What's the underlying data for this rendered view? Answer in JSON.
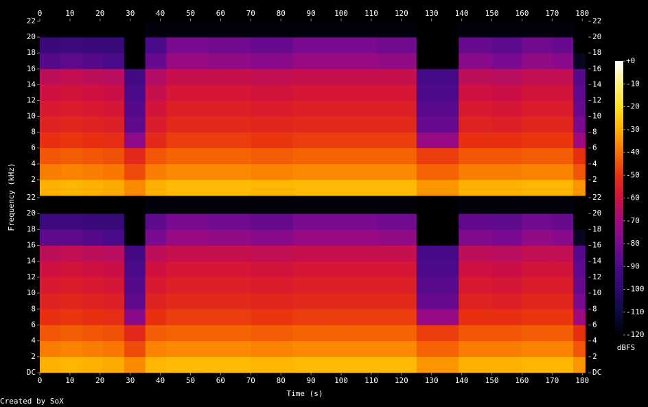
{
  "chart_data": {
    "type": "spectrogram",
    "xlabel": "Time (s)",
    "ylabel": "Frequency (kHz)",
    "credit": "Created by SoX",
    "xlim": [
      0,
      182
    ],
    "xticks": [
      0,
      10,
      20,
      30,
      40,
      50,
      60,
      70,
      80,
      90,
      100,
      110,
      120,
      130,
      140,
      150,
      160,
      170,
      180
    ],
    "ylim": [
      0,
      22
    ],
    "time_edges": [
      0,
      7,
      14,
      21,
      28,
      35,
      42,
      56,
      70,
      84,
      98,
      112,
      125,
      132,
      139,
      150,
      160,
      170,
      177,
      181
    ],
    "freq_edges": [
      0,
      2,
      4,
      6,
      8,
      10,
      12,
      14,
      16,
      18,
      20,
      22
    ],
    "channels": [
      {
        "yticks": [
          2,
          4,
          6,
          8,
          10,
          12,
          14,
          16,
          18,
          20,
          22
        ],
        "values": [
          [
            -30,
            -38,
            -44,
            -50,
            -54,
            -57,
            -60,
            -64,
            -88,
            -95,
            -120
          ],
          [
            -29,
            -37,
            -43,
            -49,
            -53,
            -56,
            -59,
            -63,
            -86,
            -94,
            -120
          ],
          [
            -30,
            -38,
            -44,
            -50,
            -54,
            -57,
            -60,
            -64,
            -88,
            -95,
            -120
          ],
          [
            -31,
            -39,
            -45,
            -51,
            -55,
            -58,
            -61,
            -65,
            -90,
            -96,
            -120
          ],
          [
            -36,
            -46,
            -52,
            -75,
            -86,
            -88,
            -90,
            -92,
            -120,
            -120,
            -120
          ],
          [
            -30,
            -38,
            -44,
            -52,
            -56,
            -59,
            -62,
            -66,
            -84,
            -90,
            -118
          ],
          [
            -28,
            -36,
            -42,
            -48,
            -52,
            -55,
            -58,
            -62,
            -72,
            -80,
            -118
          ],
          [
            -28,
            -36,
            -42,
            -48,
            -52,
            -55,
            -58,
            -62,
            -74,
            -82,
            -118
          ],
          [
            -29,
            -37,
            -43,
            -49,
            -53,
            -56,
            -59,
            -63,
            -76,
            -84,
            -118
          ],
          [
            -28,
            -36,
            -42,
            -48,
            -52,
            -55,
            -58,
            -62,
            -72,
            -80,
            -118
          ],
          [
            -28,
            -36,
            -42,
            -48,
            -52,
            -55,
            -58,
            -62,
            -72,
            -80,
            -118
          ],
          [
            -28,
            -36,
            -42,
            -48,
            -52,
            -55,
            -58,
            -62,
            -74,
            -82,
            -118
          ],
          [
            -34,
            -42,
            -48,
            -72,
            -84,
            -87,
            -89,
            -91,
            -120,
            -120,
            -120
          ],
          [
            -34,
            -42,
            -48,
            -72,
            -84,
            -87,
            -89,
            -91,
            -120,
            -120,
            -120
          ],
          [
            -30,
            -38,
            -44,
            -50,
            -54,
            -57,
            -60,
            -64,
            -76,
            -84,
            -118
          ],
          [
            -30,
            -38,
            -44,
            -50,
            -55,
            -58,
            -61,
            -65,
            -80,
            -86,
            -118
          ],
          [
            -29,
            -37,
            -43,
            -49,
            -53,
            -56,
            -59,
            -63,
            -74,
            -82,
            -118
          ],
          [
            -29,
            -37,
            -43,
            -49,
            -53,
            -56,
            -59,
            -63,
            -76,
            -84,
            -118
          ],
          [
            -34,
            -44,
            -50,
            -70,
            -80,
            -84,
            -86,
            -88,
            -115,
            -120,
            -120
          ]
        ]
      },
      {
        "yticks": [
          {
            "value": 0,
            "label": "DC"
          },
          2,
          4,
          6,
          8,
          10,
          12,
          14,
          16,
          18,
          20,
          22
        ],
        "values": [
          [
            -30,
            -38,
            -44,
            -50,
            -54,
            -57,
            -60,
            -64,
            -86,
            -94,
            -120
          ],
          [
            -29,
            -37,
            -43,
            -49,
            -53,
            -56,
            -59,
            -63,
            -86,
            -94,
            -120
          ],
          [
            -30,
            -38,
            -44,
            -50,
            -54,
            -57,
            -60,
            -64,
            -88,
            -95,
            -120
          ],
          [
            -31,
            -39,
            -45,
            -51,
            -55,
            -58,
            -61,
            -65,
            -90,
            -96,
            -120
          ],
          [
            -36,
            -46,
            -52,
            -76,
            -86,
            -88,
            -90,
            -92,
            -120,
            -120,
            -120
          ],
          [
            -29,
            -37,
            -43,
            -50,
            -54,
            -57,
            -60,
            -64,
            -80,
            -86,
            -118
          ],
          [
            -28,
            -36,
            -42,
            -48,
            -52,
            -55,
            -58,
            -62,
            -72,
            -80,
            -118
          ],
          [
            -28,
            -36,
            -42,
            -48,
            -52,
            -55,
            -58,
            -62,
            -74,
            -82,
            -118
          ],
          [
            -29,
            -37,
            -43,
            -49,
            -53,
            -56,
            -59,
            -63,
            -76,
            -84,
            -118
          ],
          [
            -28,
            -36,
            -42,
            -48,
            -52,
            -55,
            -58,
            -62,
            -72,
            -80,
            -118
          ],
          [
            -28,
            -36,
            -42,
            -48,
            -52,
            -55,
            -58,
            -62,
            -72,
            -80,
            -118
          ],
          [
            -28,
            -36,
            -42,
            -48,
            -52,
            -55,
            -58,
            -62,
            -74,
            -82,
            -118
          ],
          [
            -34,
            -42,
            -48,
            -72,
            -84,
            -87,
            -89,
            -91,
            -120,
            -120,
            -120
          ],
          [
            -34,
            -42,
            -48,
            -72,
            -84,
            -87,
            -89,
            -91,
            -120,
            -120,
            -120
          ],
          [
            -30,
            -38,
            -44,
            -50,
            -54,
            -57,
            -60,
            -64,
            -78,
            -85,
            -118
          ],
          [
            -30,
            -38,
            -44,
            -50,
            -55,
            -58,
            -61,
            -65,
            -80,
            -86,
            -118
          ],
          [
            -29,
            -37,
            -43,
            -49,
            -53,
            -56,
            -59,
            -63,
            -74,
            -82,
            -118
          ],
          [
            -29,
            -37,
            -43,
            -49,
            -53,
            -56,
            -59,
            -63,
            -76,
            -84,
            -118
          ],
          [
            -34,
            -44,
            -50,
            -70,
            -80,
            -84,
            -86,
            -88,
            -115,
            -120,
            -120
          ]
        ]
      }
    ],
    "colorbar": {
      "label": "dBFS",
      "zlim": [
        -120,
        0
      ],
      "ticks": [
        {
          "value": 0,
          "label": "+0"
        },
        -10,
        -20,
        -30,
        -40,
        -50,
        -60,
        -70,
        -80,
        -90,
        -100,
        -110,
        -120
      ]
    }
  }
}
